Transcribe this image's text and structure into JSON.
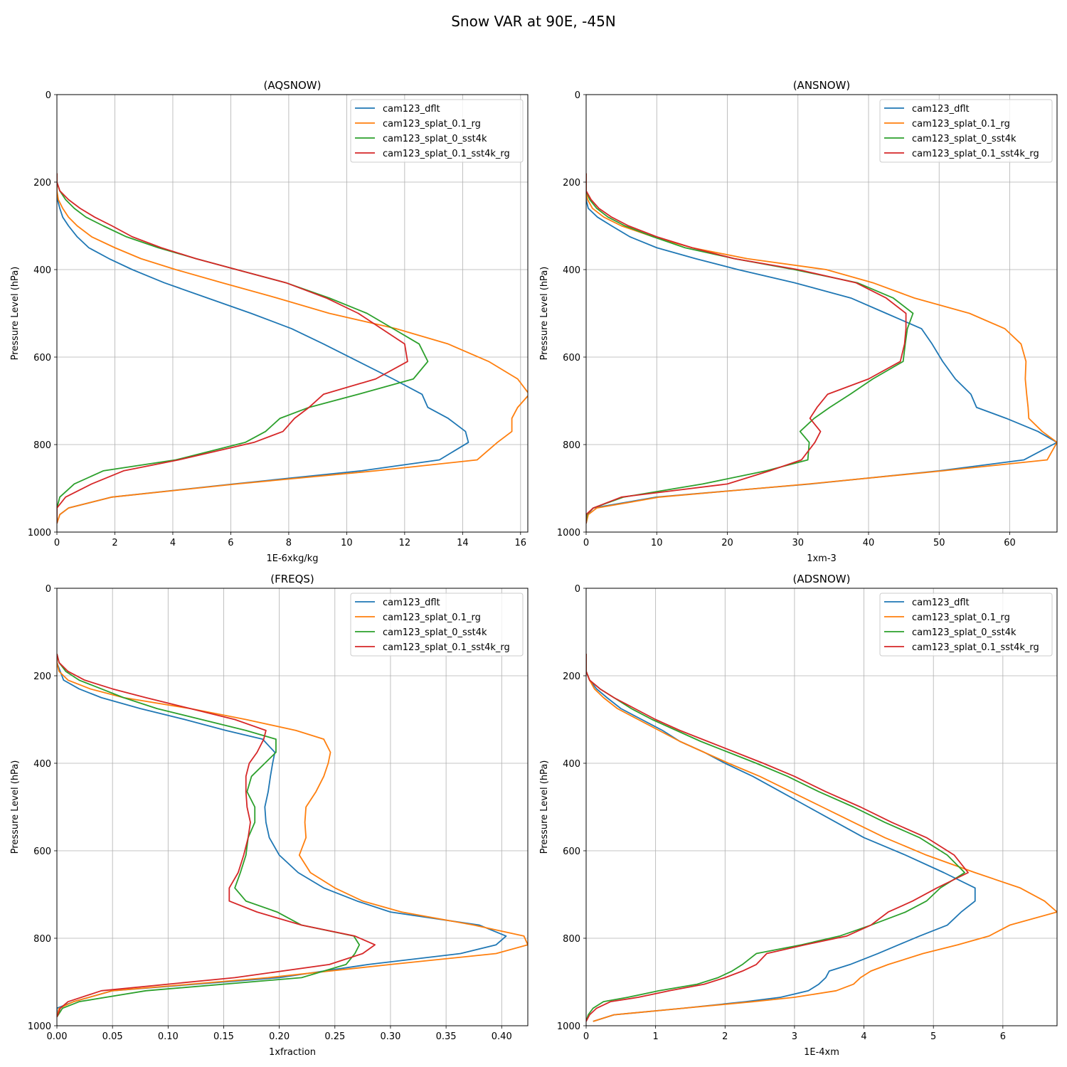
{
  "suptitle": "Snow VAR at 90E, -45N",
  "colors": {
    "cam123_dflt": "#1f77b4",
    "cam123_splat_0.1_rg": "#ff7f0e",
    "cam123_splat_0_sst4k": "#2ca02c",
    "cam123_splat_0.1_sst4k_rg": "#d62728"
  },
  "chart_data": [
    {
      "type": "line",
      "title": "(AQSNOW)",
      "xlabel": "1E-6xkg/kg",
      "ylabel": "Pressure Level (hPa)",
      "xlim": [
        0,
        16.25
      ],
      "ylim": [
        1000,
        0
      ],
      "xticks": [
        0,
        2,
        4,
        6,
        8,
        10,
        12,
        14,
        16
      ],
      "yticks": [
        0,
        200,
        400,
        600,
        800,
        1000
      ],
      "grid": true,
      "legend": "top-right",
      "levels": [
        180,
        200,
        220,
        240,
        260,
        280,
        300,
        325,
        350,
        375,
        400,
        430,
        465,
        500,
        535,
        570,
        610,
        650,
        685,
        715,
        740,
        770,
        795,
        835,
        860,
        890,
        920,
        945,
        960,
        980
      ],
      "series": [
        {
          "name": "cam123_dflt",
          "values": [
            0,
            0,
            0,
            0.02,
            0.1,
            0.2,
            0.4,
            0.7,
            1.1,
            1.8,
            2.6,
            3.7,
            5.2,
            6.7,
            8.1,
            9.2,
            10.4,
            11.6,
            12.6,
            12.8,
            13.5,
            14.1,
            14.2,
            13.2,
            10.5,
            6.1,
            1.9,
            0.4,
            0.1,
            0
          ]
        },
        {
          "name": "cam123_splat_0.1_rg",
          "values": [
            0,
            0,
            0,
            0.05,
            0.2,
            0.4,
            0.7,
            1.2,
            2,
            2.9,
            4.1,
            5.7,
            7.6,
            9.4,
            11.7,
            13.5,
            14.9,
            15.9,
            16.3,
            15.9,
            15.7,
            15.7,
            15.2,
            14.5,
            11,
            6.2,
            1.9,
            0.4,
            0.1,
            0
          ]
        },
        {
          "name": "cam123_splat_0_sst4k",
          "values": [
            0,
            0,
            0.1,
            0.3,
            0.6,
            1,
            1.6,
            2.4,
            3.5,
            4.8,
            6.2,
            7.9,
            9.4,
            10.7,
            11.6,
            12.5,
            12.8,
            12.3,
            10.4,
            8.7,
            7.7,
            7.2,
            6.5,
            4.1,
            1.6,
            0.6,
            0.1,
            0,
            0,
            0
          ]
        },
        {
          "name": "cam123_splat_0.1_sst4k_rg",
          "values": [
            0,
            0,
            0.1,
            0.4,
            0.8,
            1.3,
            1.9,
            2.6,
            3.6,
            4.8,
            6.2,
            7.9,
            9.3,
            10.4,
            11.2,
            12,
            12.1,
            11,
            9.2,
            8.7,
            8.2,
            7.8,
            6.8,
            4.2,
            2.3,
            1.2,
            0.3,
            0,
            0,
            0
          ]
        }
      ]
    },
    {
      "type": "line",
      "title": "(ANSNOW)",
      "xlabel": "1xm-3",
      "ylabel": "Pressure Level (hPa)",
      "xlim": [
        0,
        66.7
      ],
      "ylim": [
        1000,
        0
      ],
      "xticks": [
        0,
        10,
        20,
        30,
        40,
        50,
        60
      ],
      "yticks": [
        0,
        200,
        400,
        600,
        800,
        1000
      ],
      "grid": true,
      "legend": "top-right",
      "levels": [
        180,
        200,
        220,
        240,
        260,
        280,
        300,
        325,
        350,
        375,
        400,
        430,
        465,
        500,
        535,
        570,
        610,
        650,
        685,
        715,
        740,
        770,
        795,
        835,
        860,
        890,
        920,
        945,
        960,
        980
      ],
      "series": [
        {
          "name": "cam123_dflt",
          "values": [
            0,
            0,
            0,
            0,
            0.3,
            1.6,
            3.6,
            6.2,
            10,
            15.5,
            21.5,
            29.5,
            37.5,
            42.5,
            47.5,
            49,
            50.5,
            52.3,
            54.5,
            55.3,
            59.5,
            64,
            66.7,
            62,
            50,
            31.8,
            10,
            1,
            0.2,
            0
          ]
        },
        {
          "name": "cam123_splat_0.1_rg",
          "values": [
            0,
            0,
            0,
            0.2,
            0.9,
            2.5,
            5,
            9.5,
            15,
            22.8,
            34,
            40.6,
            46.5,
            54.3,
            59.3,
            61.6,
            62.3,
            62.2,
            62.4,
            62.6,
            62.7,
            64.6,
            66.7,
            65.3,
            50.5,
            31.5,
            10.4,
            1.5,
            0.3,
            0
          ]
        },
        {
          "name": "cam123_splat_0_sst4k",
          "values": [
            0,
            0,
            0,
            0.5,
            1.5,
            3.1,
            5.5,
            9.5,
            14,
            21,
            29.5,
            38.4,
            43.5,
            46.3,
            45.5,
            45.2,
            44.9,
            40.6,
            37.4,
            34.5,
            32.3,
            30.3,
            31.6,
            31.4,
            25.5,
            16.5,
            5.3,
            1,
            0.1,
            0
          ]
        },
        {
          "name": "cam123_splat_0.1_sst4k_rg",
          "values": [
            0,
            0,
            0,
            0.7,
            1.8,
            3.6,
            6,
            10,
            15,
            21,
            30,
            38.2,
            42.5,
            45.3,
            45.3,
            45.1,
            44.5,
            40,
            34.2,
            32.7,
            31.7,
            33.2,
            32.4,
            30.5,
            26,
            20,
            5,
            1,
            0,
            0
          ]
        }
      ]
    },
    {
      "type": "line",
      "title": "(FREQS)",
      "xlabel": "1xfraction",
      "ylabel": "Pressure Level (hPa)",
      "xlim": [
        0,
        0.4235
      ],
      "ylim": [
        1000,
        0
      ],
      "xticks": [
        0,
        0.05,
        0.1,
        0.15,
        0.2,
        0.25,
        0.3,
        0.35,
        0.4
      ],
      "xticklabels": [
        "0.00",
        "0.05",
        "0.10",
        "0.15",
        "0.20",
        "0.25",
        "0.30",
        "0.35",
        "0.40"
      ],
      "yticks": [
        0,
        200,
        400,
        600,
        800,
        1000
      ],
      "grid": true,
      "legend": "top-right",
      "levels": [
        150,
        170,
        190,
        210,
        230,
        250,
        275,
        300,
        325,
        345,
        375,
        400,
        430,
        465,
        500,
        535,
        570,
        610,
        650,
        685,
        715,
        740,
        770,
        795,
        815,
        835,
        860,
        890,
        920,
        945,
        960,
        980
      ],
      "series": [
        {
          "name": "cam123_dflt",
          "values": [
            0,
            0,
            0.003,
            0.006,
            0.02,
            0.04,
            0.075,
            0.115,
            0.152,
            0.185,
            0.196,
            0.194,
            0.192,
            0.19,
            0.187,
            0.188,
            0.191,
            0.2,
            0.217,
            0.24,
            0.27,
            0.3,
            0.38,
            0.404,
            0.395,
            0.363,
            0.28,
            0.2,
            0.05,
            0.015,
            0,
            0
          ]
        },
        {
          "name": "cam123_splat_0.1_rg",
          "values": [
            0,
            0,
            0.002,
            0.01,
            0.03,
            0.06,
            0.12,
            0.17,
            0.215,
            0.24,
            0.246,
            0.244,
            0.24,
            0.233,
            0.224,
            0.223,
            0.224,
            0.218,
            0.228,
            0.25,
            0.275,
            0.31,
            0.375,
            0.42,
            0.4235,
            0.395,
            0.3,
            0.19,
            0.05,
            0.015,
            0.002,
            0
          ]
        },
        {
          "name": "cam123_splat_0_sst4k",
          "values": [
            0,
            0.002,
            0.008,
            0.02,
            0.04,
            0.06,
            0.09,
            0.13,
            0.17,
            0.197,
            0.197,
            0.187,
            0.175,
            0.171,
            0.178,
            0.178,
            0.172,
            0.17,
            0.165,
            0.16,
            0.17,
            0.198,
            0.22,
            0.267,
            0.272,
            0.268,
            0.26,
            0.22,
            0.08,
            0.02,
            0.005,
            0
          ]
        },
        {
          "name": "cam123_splat_0.1_sst4k_rg",
          "values": [
            0,
            0.002,
            0.01,
            0.025,
            0.05,
            0.08,
            0.12,
            0.16,
            0.188,
            0.186,
            0.18,
            0.173,
            0.17,
            0.17,
            0.171,
            0.174,
            0.172,
            0.168,
            0.163,
            0.155,
            0.155,
            0.18,
            0.22,
            0.268,
            0.286,
            0.275,
            0.245,
            0.16,
            0.04,
            0.01,
            0.003,
            0
          ]
        }
      ]
    },
    {
      "type": "line",
      "title": "(ADSNOW)",
      "xlabel": "1E-4xm",
      "ylabel": "Pressure Level (hPa)",
      "xlim": [
        0,
        6.78
      ],
      "ylim": [
        1000,
        0
      ],
      "xticks": [
        0,
        1,
        2,
        3,
        4,
        5,
        6
      ],
      "yticks": [
        0,
        200,
        400,
        600,
        800,
        1000
      ],
      "grid": true,
      "legend": "top-right",
      "levels": [
        150,
        170,
        190,
        210,
        230,
        250,
        275,
        300,
        325,
        350,
        375,
        400,
        430,
        465,
        500,
        535,
        570,
        610,
        650,
        685,
        715,
        740,
        770,
        795,
        815,
        835,
        860,
        875,
        890,
        905,
        920,
        935,
        945,
        960,
        975,
        990
      ],
      "series": [
        {
          "name": "cam123_dflt",
          "values": [
            0,
            0,
            0,
            0.05,
            0.15,
            0.3,
            0.5,
            0.8,
            1.1,
            1.35,
            1.7,
            2,
            2.4,
            2.8,
            3.2,
            3.6,
            4,
            4.6,
            5.15,
            5.6,
            5.6,
            5.4,
            5.2,
            4.8,
            4.5,
            4.2,
            3.8,
            3.5,
            3.45,
            3.35,
            3.2,
            2.8,
            2.3,
            1.4,
            0.4,
            0.1
          ]
        },
        {
          "name": "cam123_splat_0.1_rg",
          "values": [
            0,
            0,
            0,
            0.05,
            0.12,
            0.25,
            0.45,
            0.75,
            1.05,
            1.35,
            1.7,
            2.05,
            2.5,
            2.95,
            3.4,
            3.85,
            4.3,
            4.9,
            5.6,
            6.25,
            6.6,
            6.78,
            6.1,
            5.8,
            5.35,
            4.85,
            4.35,
            4.1,
            3.95,
            3.85,
            3.6,
            3,
            2.4,
            1.4,
            0.4,
            0.1
          ]
        },
        {
          "name": "cam123_splat_0_sst4k",
          "values": [
            0,
            0,
            0,
            0.05,
            0.2,
            0.4,
            0.65,
            0.95,
            1.3,
            1.65,
            2.05,
            2.45,
            2.9,
            3.35,
            3.85,
            4.3,
            4.8,
            5.2,
            5.45,
            5.1,
            4.9,
            4.6,
            4.1,
            3.65,
            3.1,
            2.45,
            2.25,
            2.1,
            1.9,
            1.6,
            1.05,
            0.6,
            0.25,
            0.1,
            0.03,
            0
          ]
        },
        {
          "name": "cam123_splat_0.1_sst4k_rg",
          "values": [
            0,
            0,
            0,
            0.05,
            0.2,
            0.4,
            0.7,
            1,
            1.35,
            1.75,
            2.15,
            2.55,
            3,
            3.45,
            3.95,
            4.4,
            4.9,
            5.3,
            5.5,
            5.05,
            4.7,
            4.35,
            4.1,
            3.75,
            3.15,
            2.6,
            2.45,
            2.25,
            2,
            1.7,
            1.2,
            0.75,
            0.35,
            0.15,
            0.05,
            0
          ]
        }
      ]
    }
  ]
}
